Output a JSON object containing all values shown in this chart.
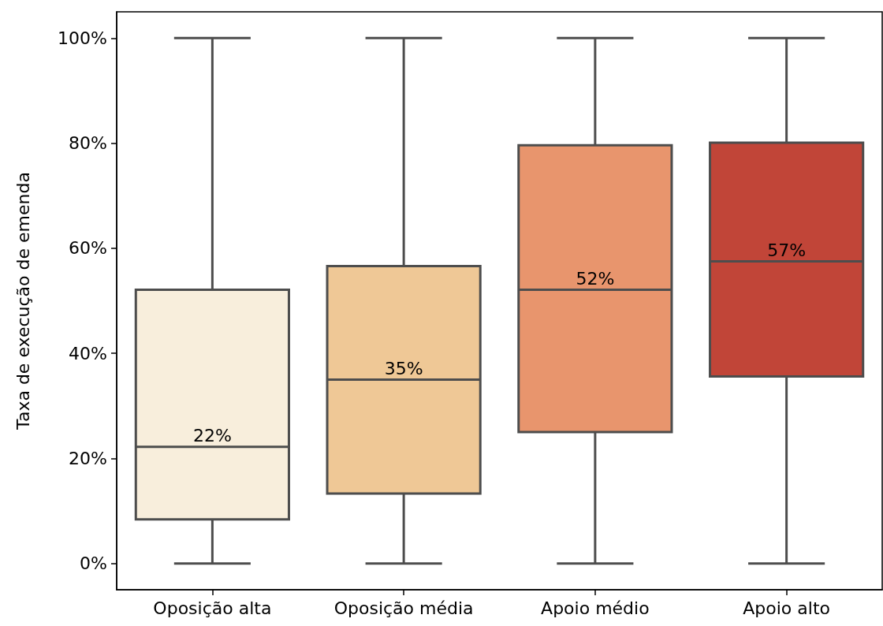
{
  "chart_data": {
    "type": "box",
    "ylabel": "Taxa de execução de emenda",
    "categories": [
      "Oposição alta",
      "Oposição média",
      "Apoio médio",
      "Apoio alto"
    ],
    "boxes": [
      {
        "low": 0,
        "q1": 8.4,
        "median": 22.2,
        "q3": 52.1,
        "high": 100
      },
      {
        "low": 0,
        "q1": 13.3,
        "median": 35,
        "q3": 56.6,
        "high": 100
      },
      {
        "low": 0,
        "q1": 25,
        "median": 52.1,
        "q3": 79.6,
        "high": 100
      },
      {
        "low": 0,
        "q1": 35.6,
        "median": 57.5,
        "q3": 80.1,
        "high": 100
      }
    ],
    "colors": [
      "#f8eedc",
      "#efc896",
      "#e8956d",
      "#c14538"
    ],
    "value_labels": [
      "22%",
      "35%",
      "52%",
      "57%"
    ],
    "ylim": [
      -5,
      105
    ],
    "yticks": [
      {
        "value": 0,
        "label": "0%"
      },
      {
        "value": 20,
        "label": "20%"
      },
      {
        "value": 40,
        "label": "40%"
      },
      {
        "value": 60,
        "label": "60%"
      },
      {
        "value": 80,
        "label": "80%"
      },
      {
        "value": 100,
        "label": "100%"
      }
    ],
    "grid": false
  }
}
